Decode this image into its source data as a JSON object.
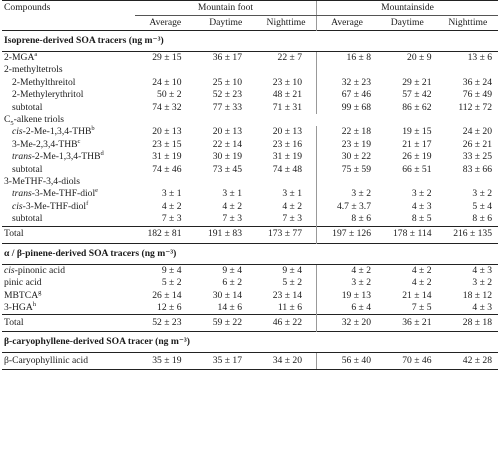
{
  "header": {
    "compounds": "Compounds",
    "group1": "Mountain foot",
    "group2": "Mountainside",
    "col_average": "Average",
    "col_daytime": "Daytime",
    "col_nighttime": "Nighttime"
  },
  "sections": {
    "isoprene": "Isoprene-derived SOA tracers (ng m⁻³)",
    "pinene": "α / β-pinene-derived SOA tracers (ng m⁻³)",
    "caryophyllene": "β-caryophyllene-derived SOA tracer (ng m⁻³)"
  },
  "rows": {
    "mga": {
      "label": "2-MGA",
      "fn": "a",
      "v": [
        "29 ± 15",
        "36 ± 17",
        "22 ± 7",
        "16 ± 8",
        "20 ± 9",
        "13 ± 6"
      ]
    },
    "methyltetrols": {
      "label": "2-methyltetrols"
    },
    "mthreitol": {
      "label": "2-Methylthreitol",
      "v": [
        "24 ± 10",
        "25 ± 10",
        "23 ± 10",
        "32 ± 23",
        "29 ± 21",
        "36 ± 24"
      ]
    },
    "merythritol": {
      "label": "2-Methylerythritol",
      "v": [
        "50 ± 2",
        "52 ± 23",
        "48 ± 21",
        "67 ± 46",
        "57 ± 42",
        "76 ± 49"
      ]
    },
    "subtotal1": {
      "label": "subtotal",
      "v": [
        "74 ± 32",
        "77 ± 33",
        "71 ± 31",
        "99 ± 68",
        "86 ± 62",
        "112 ± 72"
      ]
    },
    "c5alkene_pre": "C",
    "c5alkene_sub": "5",
    "c5alkene_post": "-alkene triols",
    "cis2me": {
      "pre": "cis",
      "label": "-2-Me-1,3,4-THB",
      "fn": "b",
      "v": [
        "20 ± 13",
        "20 ± 13",
        "20 ± 13",
        "22 ± 18",
        "19 ± 15",
        "24 ± 20"
      ]
    },
    "me3": {
      "label": "3-Me-2,3,4-THB",
      "fn": "c",
      "v": [
        "23 ± 15",
        "22 ± 14",
        "23 ± 16",
        "23 ± 19",
        "21 ± 17",
        "26 ± 21"
      ]
    },
    "trans2me": {
      "pre": "trans",
      "label": "-2-Me-1,3,4-THB",
      "fn": "d",
      "v": [
        "31 ± 19",
        "30 ± 19",
        "31 ± 19",
        "30 ± 22",
        "26 ± 19",
        "33 ± 25"
      ]
    },
    "subtotal2": {
      "label": "subtotal",
      "v": [
        "74 ± 46",
        "73 ± 45",
        "74 ± 48",
        "75 ± 59",
        "66 ± 51",
        "83 ± 66"
      ]
    },
    "methf": {
      "label": "3-MeTHF-3,4-diols"
    },
    "transthf": {
      "pre": "trans",
      "label": "-3-Me-THF-diol",
      "fn": "e",
      "v": [
        "3 ± 1",
        "3 ± 1",
        "3 ± 1",
        "3 ± 2",
        "3 ± 2",
        "3 ± 2"
      ]
    },
    "cisthf": {
      "pre": "cis",
      "label": "-3-Me-THF-diol",
      "fn": "f",
      "v": [
        "4 ± 2",
        "4 ± 2",
        "4 ± 2",
        "4.7 ± 3.7",
        "4 ± 3",
        "5 ± 4"
      ]
    },
    "subtotal3": {
      "label": "subtotal",
      "v": [
        "7 ± 3",
        "7 ± 3",
        "7 ± 3",
        "8 ± 6",
        "8 ± 5",
        "8 ± 6"
      ]
    },
    "total1": {
      "label": "Total",
      "v": [
        "182 ± 81",
        "191 ± 83",
        "173 ± 77",
        "197 ± 126",
        "178 ± 114",
        "216 ± 135"
      ]
    },
    "pinonic": {
      "pre": "cis",
      "label": "-pinonic acid",
      "v": [
        "9 ± 4",
        "9 ± 4",
        "9 ± 4",
        "4 ± 2",
        "4 ± 2",
        "4 ± 3"
      ]
    },
    "pinic": {
      "label": "pinic acid",
      "v": [
        "5 ± 2",
        "6 ± 2",
        "5 ± 2",
        "3 ± 2",
        "4 ± 2",
        "3 ± 2"
      ]
    },
    "mbtca": {
      "label": "MBTCA",
      "fn": "g",
      "v": [
        "26 ± 14",
        "30 ± 14",
        "23 ± 14",
        "19 ± 13",
        "21 ± 14",
        "18 ± 12"
      ]
    },
    "hga": {
      "label": "3-HGA",
      "fn": "h",
      "v": [
        "12 ± 6",
        "14 ± 6",
        "11 ± 6",
        "6 ± 4",
        "7 ± 5",
        "4 ± 3"
      ]
    },
    "total2": {
      "label": "Total",
      "v": [
        "52 ± 23",
        "59 ± 22",
        "46 ± 22",
        "32 ± 20",
        "36 ± 21",
        "28 ± 18"
      ]
    },
    "caryo": {
      "pre": "β",
      "label": "-Caryophyllinic acid",
      "v": [
        "35 ± 19",
        "35 ± 17",
        "34 ± 20",
        "56 ± 40",
        "70 ± 46",
        "42 ± 28"
      ]
    }
  }
}
